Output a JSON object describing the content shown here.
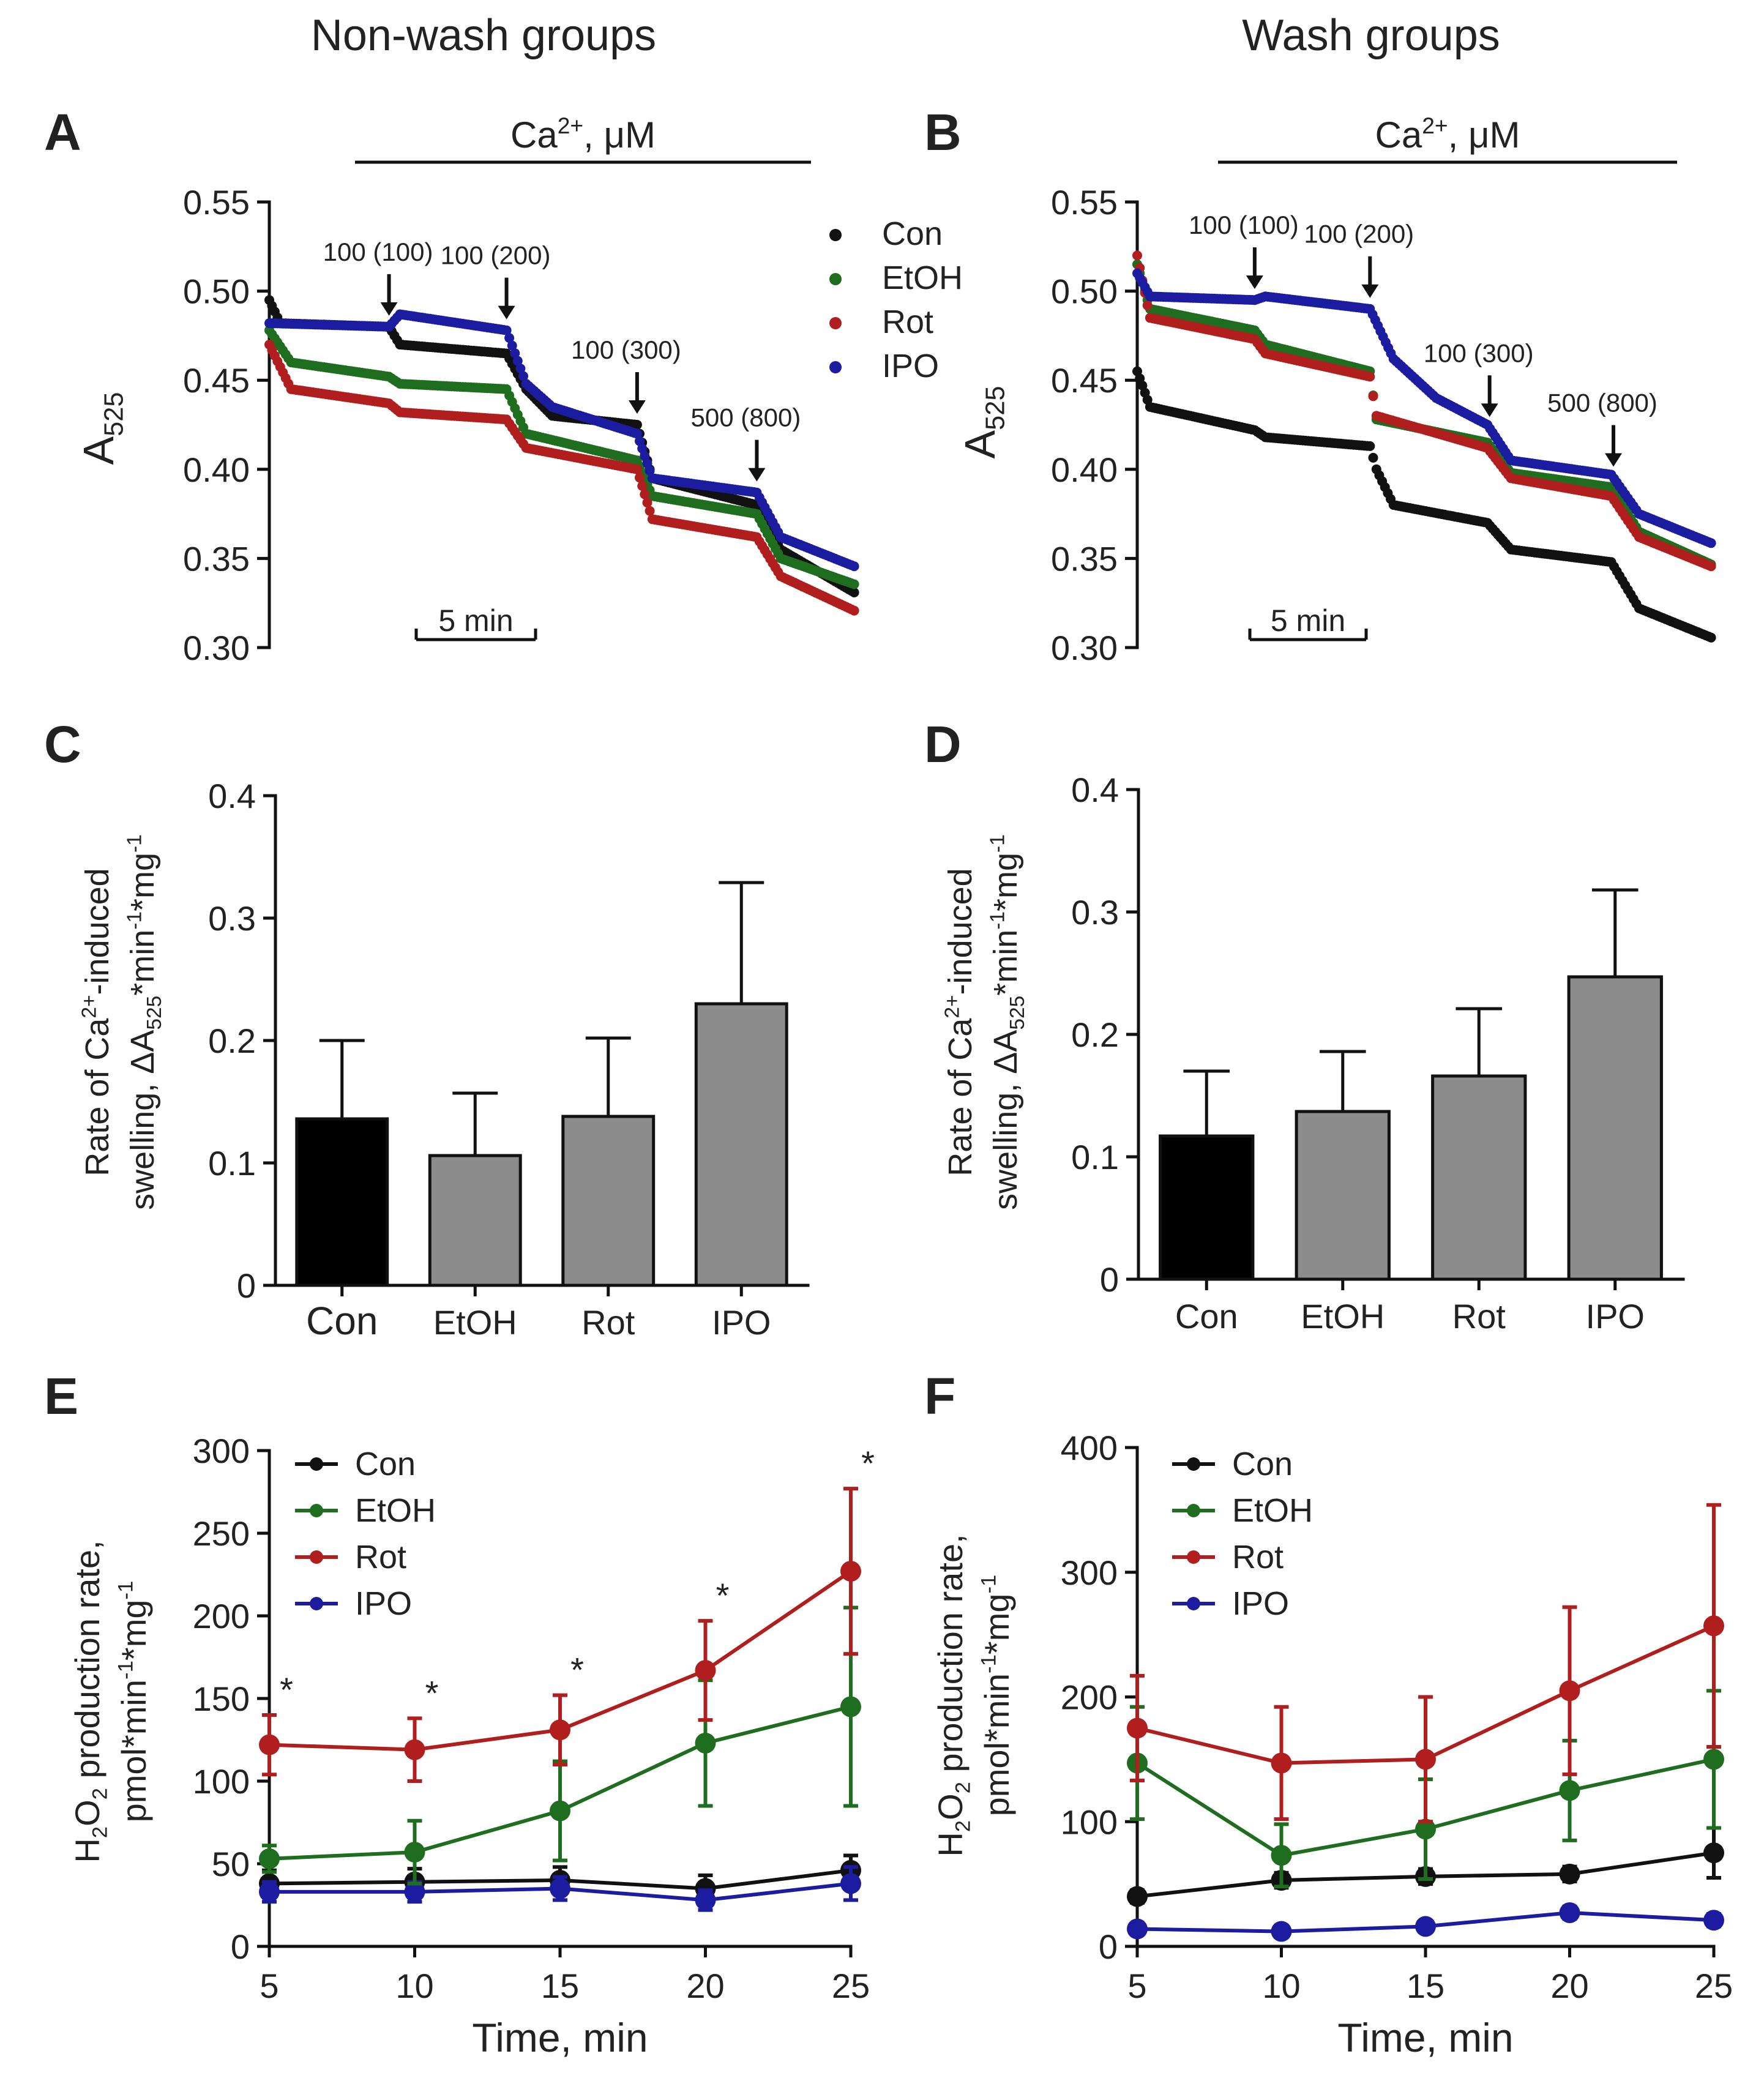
{
  "headings": {
    "left": "Non-wash groups",
    "right": "Wash groups"
  },
  "colors": {
    "Con": "#111111",
    "EtOH": "#1f6e1f",
    "Rot": "#b01e1e",
    "IPO": "#1c1ca0",
    "bar_con": "#000000",
    "bar_other": "#8c8c8c"
  },
  "chart_data": [
    {
      "panel": "A",
      "type": "line",
      "group": "Non-wash groups",
      "ylabel": "A",
      "ylabel_sub": "525",
      "ylim": [
        0.3,
        0.55
      ],
      "yticks": [
        "0.55",
        "0.50",
        "0.45",
        "0.40",
        "0.35",
        "0.30"
      ],
      "xlim_min": [
        0,
        27
      ],
      "scale_bar": "5 min",
      "ca_label": "Ca2+, μM",
      "additions": [
        {
          "label": "100 (100)",
          "time": 5.5
        },
        {
          "label": "100 (200)",
          "time": 10.9
        },
        {
          "label": "100 (300)",
          "time": 16.9
        },
        {
          "label": "500 (800)",
          "time": 22.4
        }
      ],
      "legend": [
        "Con",
        "EtOH",
        "Rot",
        "IPO"
      ],
      "series": [
        {
          "name": "Con",
          "points": [
            [
              0,
              0.495
            ],
            [
              0.5,
              0.482
            ],
            [
              5.5,
              0.48
            ],
            [
              6,
              0.47
            ],
            [
              10.9,
              0.465
            ],
            [
              11.8,
              0.445
            ],
            [
              13,
              0.43
            ],
            [
              16.9,
              0.425
            ],
            [
              17.6,
              0.395
            ],
            [
              22.4,
              0.38
            ],
            [
              23.5,
              0.355
            ],
            [
              27,
              0.33
            ]
          ]
        },
        {
          "name": "EtOH",
          "points": [
            [
              0,
              0.478
            ],
            [
              1,
              0.46
            ],
            [
              5.5,
              0.452
            ],
            [
              6,
              0.448
            ],
            [
              10.9,
              0.445
            ],
            [
              11.8,
              0.42
            ],
            [
              16.9,
              0.405
            ],
            [
              17.6,
              0.385
            ],
            [
              22.4,
              0.375
            ],
            [
              23.5,
              0.35
            ],
            [
              27,
              0.335
            ]
          ]
        },
        {
          "name": "Rot",
          "points": [
            [
              0,
              0.47
            ],
            [
              1,
              0.445
            ],
            [
              5.5,
              0.437
            ],
            [
              6,
              0.432
            ],
            [
              10.9,
              0.428
            ],
            [
              11.8,
              0.412
            ],
            [
              16.9,
              0.4
            ],
            [
              17.6,
              0.372
            ],
            [
              22.4,
              0.362
            ],
            [
              23.5,
              0.34
            ],
            [
              27,
              0.32
            ]
          ]
        },
        {
          "name": "IPO",
          "points": [
            [
              0,
              0.482
            ],
            [
              5.5,
              0.48
            ],
            [
              6,
              0.487
            ],
            [
              10.9,
              0.478
            ],
            [
              11.8,
              0.448
            ],
            [
              13,
              0.435
            ],
            [
              16.9,
              0.42
            ],
            [
              17.6,
              0.395
            ],
            [
              22.4,
              0.387
            ],
            [
              23.5,
              0.362
            ],
            [
              27,
              0.345
            ]
          ]
        }
      ]
    },
    {
      "panel": "B",
      "type": "line",
      "group": "Wash groups",
      "ylabel": "A",
      "ylabel_sub": "525",
      "ylim": [
        0.3,
        0.55
      ],
      "yticks": [
        "0.55",
        "0.50",
        "0.45",
        "0.40",
        "0.35",
        "0.30"
      ],
      "xlim_min": [
        0,
        27
      ],
      "scale_bar": "5 min",
      "ca_label": "Ca2+, μM",
      "additions": [
        {
          "label": "100 (100)",
          "time": 5.5
        },
        {
          "label": "100 (200)",
          "time": 10.9
        },
        {
          "label": "100 (300)",
          "time": 16.5
        },
        {
          "label": "500 (800)",
          "time": 22.3
        }
      ],
      "series": [
        {
          "name": "Con",
          "points": [
            [
              0,
              0.455
            ],
            [
              0.6,
              0.435
            ],
            [
              5.5,
              0.422
            ],
            [
              6,
              0.418
            ],
            [
              10.9,
              0.413
            ],
            [
              11.2,
              0.4
            ],
            [
              12,
              0.38
            ],
            [
              16.4,
              0.37
            ],
            [
              17.5,
              0.355
            ],
            [
              22.2,
              0.348
            ],
            [
              23.5,
              0.322
            ],
            [
              27,
              0.305
            ]
          ]
        },
        {
          "name": "EtOH",
          "points": [
            [
              0,
              0.515
            ],
            [
              0.6,
              0.49
            ],
            [
              5.5,
              0.478
            ],
            [
              6,
              0.47
            ],
            [
              10.9,
              0.455
            ],
            [
              11.2,
              0.428
            ],
            [
              16.4,
              0.415
            ],
            [
              17.5,
              0.398
            ],
            [
              22.2,
              0.39
            ],
            [
              23.5,
              0.365
            ],
            [
              27,
              0.346
            ]
          ]
        },
        {
          "name": "Rot",
          "points": [
            [
              0,
              0.52
            ],
            [
              0.6,
              0.485
            ],
            [
              5.5,
              0.473
            ],
            [
              6,
              0.465
            ],
            [
              10.9,
              0.452
            ],
            [
              11.2,
              0.43
            ],
            [
              16.4,
              0.412
            ],
            [
              17.5,
              0.395
            ],
            [
              22.2,
              0.385
            ],
            [
              23.5,
              0.362
            ],
            [
              27,
              0.345
            ]
          ]
        },
        {
          "name": "IPO",
          "points": [
            [
              0,
              0.51
            ],
            [
              0.6,
              0.497
            ],
            [
              5.5,
              0.495
            ],
            [
              6,
              0.497
            ],
            [
              10.9,
              0.49
            ],
            [
              12,
              0.462
            ],
            [
              14,
              0.44
            ],
            [
              16.4,
              0.425
            ],
            [
              17.5,
              0.405
            ],
            [
              22.2,
              0.397
            ],
            [
              23.5,
              0.375
            ],
            [
              27,
              0.358
            ]
          ]
        }
      ]
    },
    {
      "panel": "C",
      "type": "bar",
      "group": "Non-wash groups",
      "ylabel": "Rate of Ca2+-induced swelling, ΔA525*min-1*mg-1",
      "ylim": [
        0,
        0.4
      ],
      "yticks": [
        "0.4",
        "0.3",
        "0.2",
        "0.1",
        "0"
      ],
      "categories": [
        "Con",
        "EtOH",
        "Rot",
        "IPO"
      ],
      "values": [
        0.136,
        0.106,
        0.138,
        0.23
      ],
      "errors": [
        0.064,
        0.051,
        0.064,
        0.099
      ]
    },
    {
      "panel": "D",
      "type": "bar",
      "group": "Wash groups",
      "ylabel": "Rate of Ca2+-induced swelling, ΔA525*min-1*mg-1",
      "ylim": [
        0,
        0.4
      ],
      "yticks": [
        "0.4",
        "0.3",
        "0.2",
        "0.1",
        "0"
      ],
      "categories": [
        "Con",
        "EtOH",
        "Rot",
        "IPO"
      ],
      "values": [
        0.117,
        0.137,
        0.166,
        0.247
      ],
      "errors": [
        0.053,
        0.049,
        0.055,
        0.071
      ]
    },
    {
      "panel": "E",
      "type": "line",
      "group": "Non-wash groups",
      "xlabel": "Time, min",
      "ylabel": "H2O2 production rate, pmol*min-1*mg-1",
      "x": [
        5,
        10,
        15,
        20,
        25
      ],
      "xticks": [
        "5",
        "10",
        "15",
        "20",
        "25"
      ],
      "ylim": [
        0,
        300
      ],
      "yticks": [
        "300",
        "250",
        "200",
        "150",
        "100",
        "50",
        "0"
      ],
      "legend": [
        "Con",
        "EtOH",
        "Rot",
        "IPO"
      ],
      "significance": [
        "*",
        "*",
        "*",
        "*",
        "*"
      ],
      "series": [
        {
          "name": "Con",
          "values": [
            38,
            39,
            40,
            35,
            46
          ],
          "errors": [
            8,
            8,
            8,
            8,
            9
          ]
        },
        {
          "name": "EtOH",
          "values": [
            53,
            57,
            82,
            123,
            145
          ],
          "errors": [
            8,
            19,
            30,
            38,
            60
          ]
        },
        {
          "name": "Rot",
          "values": [
            122,
            119,
            131,
            167,
            227
          ],
          "errors": [
            18,
            19,
            21,
            30,
            50
          ]
        },
        {
          "name": "IPO",
          "values": [
            33,
            33,
            35,
            28,
            38
          ],
          "errors": [
            6,
            6,
            7,
            6,
            10
          ]
        }
      ]
    },
    {
      "panel": "F",
      "type": "line",
      "group": "Wash groups",
      "xlabel": "Time, min",
      "ylabel": "H2O2 production rate, pmol*min-1*mg-1",
      "x": [
        5,
        10,
        15,
        20,
        25
      ],
      "xticks": [
        "5",
        "10",
        "15",
        "20",
        "25"
      ],
      "ylim": [
        0,
        400
      ],
      "yticks": [
        "400",
        "300",
        "200",
        "100",
        "0"
      ],
      "legend": [
        "Con",
        "EtOH",
        "Rot",
        "IPO"
      ],
      "series": [
        {
          "name": "Con",
          "values": [
            40,
            53,
            56,
            58,
            75
          ],
          "errors": [
            5,
            6,
            6,
            6,
            20
          ]
        },
        {
          "name": "EtOH",
          "values": [
            147,
            73,
            94,
            125,
            150
          ],
          "errors": [
            45,
            25,
            40,
            40,
            55
          ]
        },
        {
          "name": "Rot",
          "values": [
            175,
            147,
            150,
            205,
            257
          ],
          "errors": [
            42,
            45,
            50,
            67,
            97
          ]
        },
        {
          "name": "IPO",
          "values": [
            14,
            12,
            16,
            27,
            21
          ],
          "errors": [
            4,
            4,
            4,
            5,
            5
          ]
        }
      ]
    }
  ]
}
